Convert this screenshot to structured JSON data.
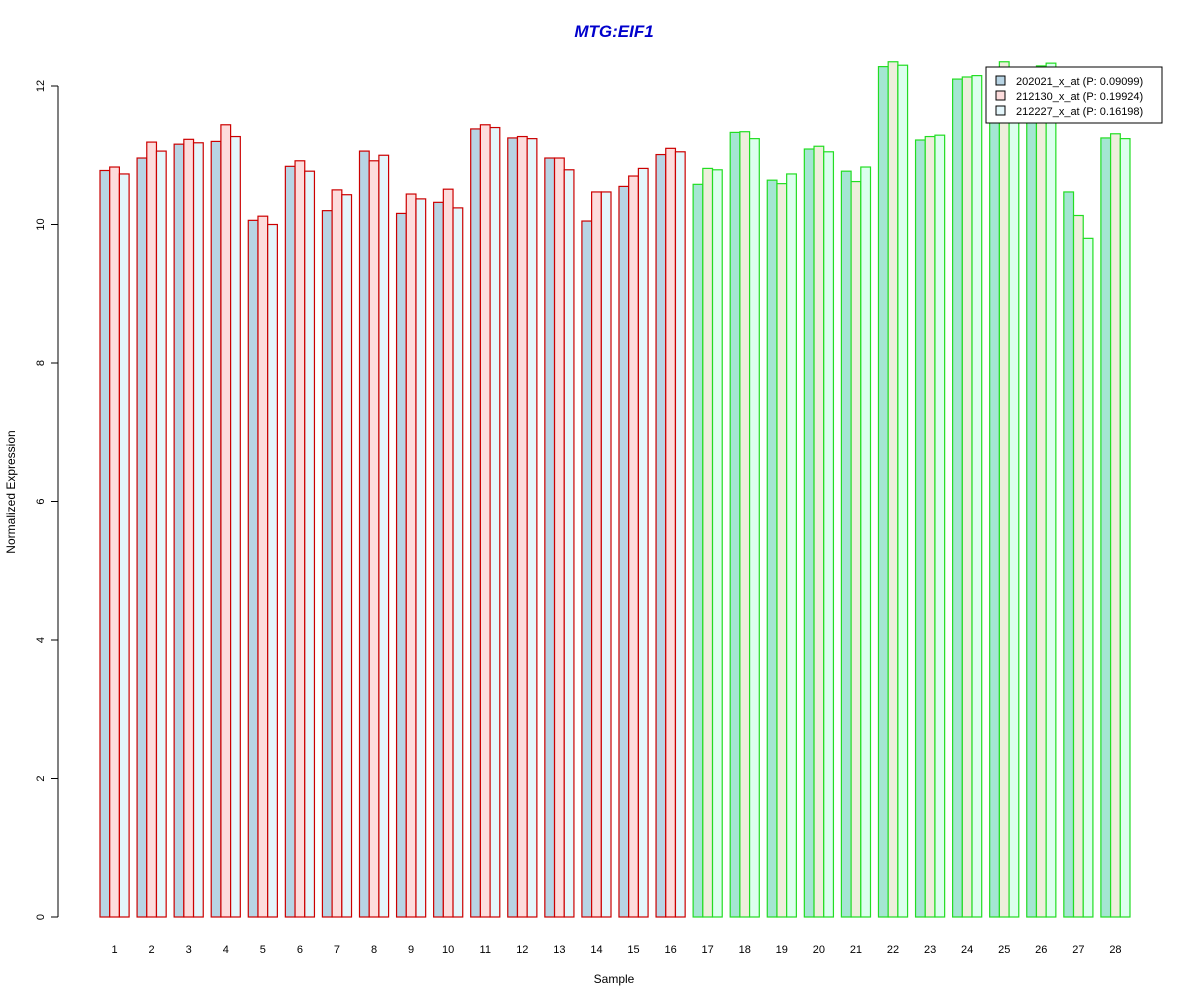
{
  "chart_data": {
    "type": "bar",
    "title": "MTG:EIF1",
    "xlabel": "Sample",
    "ylabel": "Normalized Expression",
    "ylim": [
      0,
      12.5
    ],
    "yticks": [
      0,
      2,
      4,
      6,
      8,
      10,
      12
    ],
    "grid": false,
    "legend_position": "top-right",
    "categories": [
      "1",
      "2",
      "3",
      "4",
      "5",
      "6",
      "7",
      "8",
      "9",
      "10",
      "11",
      "12",
      "13",
      "14",
      "15",
      "16",
      "17",
      "18",
      "19",
      "20",
      "21",
      "22",
      "23",
      "24",
      "25",
      "26",
      "27",
      "28"
    ],
    "group_border_colors": [
      "#cc0000",
      "#cc0000",
      "#cc0000",
      "#cc0000",
      "#cc0000",
      "#cc0000",
      "#cc0000",
      "#cc0000",
      "#cc0000",
      "#cc0000",
      "#cc0000",
      "#cc0000",
      "#cc0000",
      "#cc0000",
      "#cc0000",
      "#cc0000",
      "#22dd22",
      "#22dd22",
      "#22dd22",
      "#22dd22",
      "#22dd22",
      "#22dd22",
      "#22dd22",
      "#22dd22",
      "#22dd22",
      "#22dd22",
      "#22dd22",
      "#22dd22"
    ],
    "group_fill_sets": {
      "red": [
        "#b8d4e4",
        "#fddcdc",
        "#e4f6fb"
      ],
      "green": [
        "#a4e6d2",
        "#eeeedc",
        "#dcffee"
      ]
    },
    "title_color": "#0000cc",
    "series": [
      {
        "name": "202021_x_at (P: 0.09099)",
        "legend_fill": "#b8d4e4",
        "values": [
          10.78,
          10.96,
          11.16,
          11.2,
          10.06,
          10.84,
          10.2,
          11.06,
          10.16,
          10.32,
          11.38,
          11.25,
          10.96,
          10.05,
          10.55,
          11.01,
          10.58,
          11.33,
          10.64,
          11.09,
          10.77,
          12.28,
          11.22,
          12.1,
          11.96,
          11.86,
          10.47,
          11.25
        ]
      },
      {
        "name": "212130_x_at (P: 0.19924)",
        "legend_fill": "#fddcdc",
        "values": [
          10.83,
          11.19,
          11.23,
          11.44,
          10.12,
          10.92,
          10.5,
          10.92,
          10.44,
          10.51,
          11.44,
          11.27,
          10.96,
          10.47,
          10.7,
          11.1,
          10.81,
          11.34,
          10.59,
          11.13,
          10.62,
          12.35,
          11.27,
          12.13,
          12.35,
          12.29,
          10.13,
          11.31
        ]
      },
      {
        "name": "212227_x_at (P: 0.16198)",
        "legend_fill": "#e4f6fb",
        "values": [
          10.73,
          11.06,
          11.18,
          11.27,
          10.0,
          10.77,
          10.43,
          11.0,
          10.37,
          10.24,
          11.4,
          11.24,
          10.79,
          10.47,
          10.81,
          11.05,
          10.79,
          11.24,
          10.73,
          11.05,
          10.83,
          12.3,
          11.29,
          12.15,
          12.22,
          12.33,
          9.8,
          11.24
        ]
      }
    ]
  }
}
